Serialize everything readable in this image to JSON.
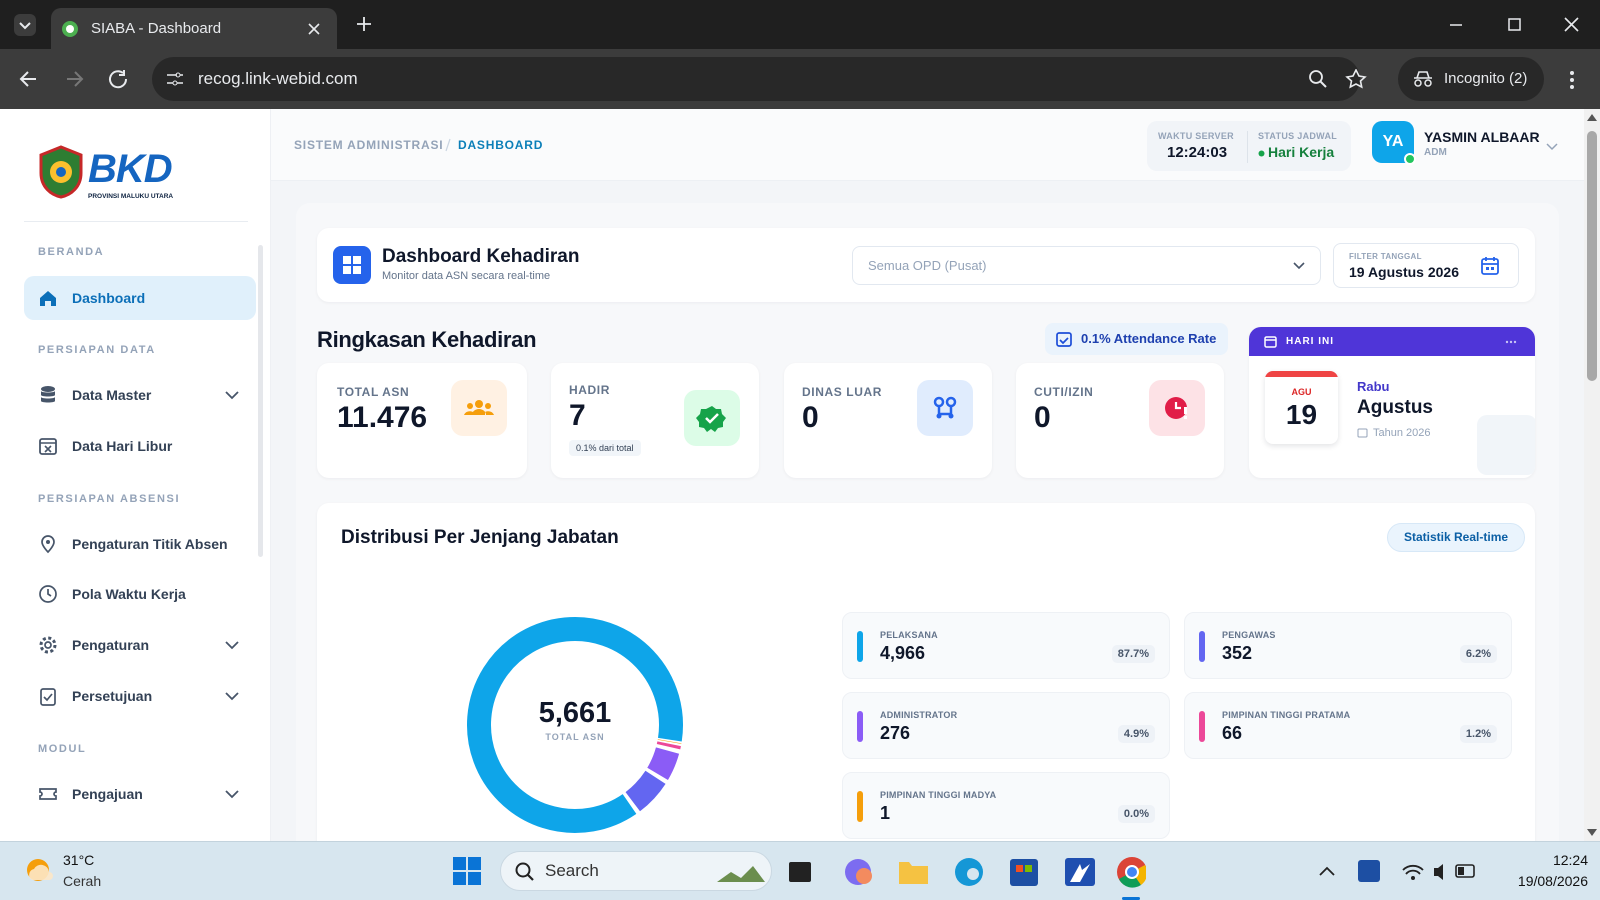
{
  "browser": {
    "tab_title": "SIABA - Dashboard",
    "url": "recog.link-webid.com",
    "profile": "Incognito (2)"
  },
  "sidebar": {
    "logo": "BKD",
    "logo_subtitle": "PROVINSI MALUKU UTARA",
    "sections": [
      {
        "title": "BERANDA",
        "items": [
          "Dashboard"
        ]
      },
      {
        "title": "PERSIAPAN DATA",
        "items": [
          "Data Master",
          "Data Hari Libur"
        ]
      },
      {
        "title": "PERSIAPAN ABSENSI",
        "items": [
          "Pengaturan Titik Absen",
          "Pola Waktu Kerja",
          "Pengaturan",
          "Persetujuan"
        ]
      },
      {
        "title": "MODUL",
        "items": [
          "Pengajuan"
        ]
      }
    ]
  },
  "header": {
    "breadcrumb": [
      "SISTEM ADMINISTRASI",
      "DASHBOARD"
    ],
    "server_time_label": "WAKTU SERVER",
    "server_time": "12:24:03",
    "schedule_label": "STATUS JADWAL",
    "schedule_status": "Hari Kerja",
    "user_initials": "YA",
    "user_name": "YASMIN ALBAAR",
    "user_role": "ADM"
  },
  "dashboard": {
    "title": "Dashboard Kehadiran",
    "subtitle": "Monitor data ASN secara real-time",
    "opd_select": "Semua OPD (Pusat)",
    "date_filter_label": "FILTER TANGGAL",
    "date_filter": "19 Agustus 2026"
  },
  "summary": {
    "title": "Ringkasan Kehadiran",
    "attendance_rate": "0.1% Attendance Rate",
    "cards": [
      {
        "label": "TOTAL ASN",
        "value": "11.476"
      },
      {
        "label": "HADIR",
        "value": "7",
        "note": "0.1% dari total"
      },
      {
        "label": "DINAS LUAR",
        "value": "0"
      },
      {
        "label": "CUTI/IZIN",
        "value": "0"
      }
    ],
    "today": {
      "label": "HARI INI",
      "month_short": "AGU",
      "day": "19",
      "weekday": "Rabu",
      "month": "Agustus",
      "year": "Tahun 2026"
    }
  },
  "distribution": {
    "title": "Distribusi Per Jenjang Jabatan",
    "badge": "Statistik Real-time",
    "total": "5,661",
    "total_label": "TOTAL ASN",
    "items": [
      {
        "name": "PELAKSANA",
        "value": 4966,
        "value_label": "4,966",
        "percent": "87.7%",
        "color": "#0ea5e9"
      },
      {
        "name": "PENGAWAS",
        "value": 352,
        "percent": "6.2%",
        "color": "#6366f1"
      },
      {
        "name": "ADMINISTRATOR",
        "value": 276,
        "percent": "4.9%",
        "color": "#8b5cf6"
      },
      {
        "name": "PIMPINAN TINGGI PRATAMA",
        "value": 66,
        "percent": "1.2%",
        "color": "#ec4899"
      },
      {
        "name": "PIMPINAN TINGGI MADYA",
        "value": 1,
        "percent": "0.0%",
        "color": "#f59e0b"
      }
    ]
  },
  "taskbar": {
    "temperature": "31°C",
    "weather": "Cerah",
    "search": "Search",
    "time": "12:24",
    "date": "19/08/2026"
  }
}
